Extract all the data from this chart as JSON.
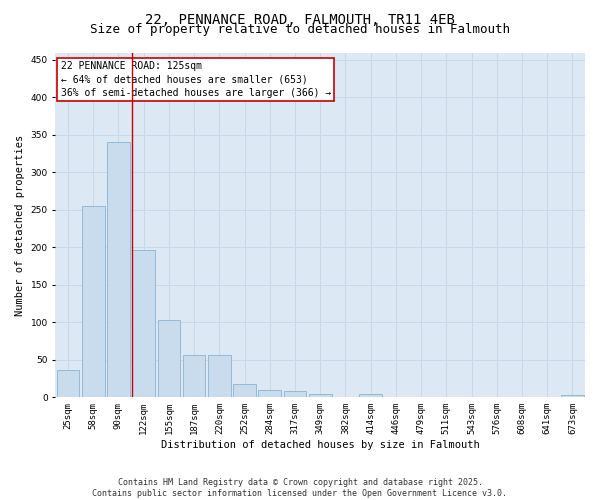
{
  "title_line1": "22, PENNANCE ROAD, FALMOUTH, TR11 4EB",
  "title_line2": "Size of property relative to detached houses in Falmouth",
  "xlabel": "Distribution of detached houses by size in Falmouth",
  "ylabel": "Number of detached properties",
  "categories": [
    "25sqm",
    "58sqm",
    "90sqm",
    "122sqm",
    "155sqm",
    "187sqm",
    "220sqm",
    "252sqm",
    "284sqm",
    "317sqm",
    "349sqm",
    "382sqm",
    "414sqm",
    "446sqm",
    "479sqm",
    "511sqm",
    "543sqm",
    "576sqm",
    "608sqm",
    "641sqm",
    "673sqm"
  ],
  "values": [
    36,
    255,
    340,
    197,
    103,
    57,
    57,
    18,
    10,
    8,
    5,
    0,
    4,
    0,
    0,
    0,
    0,
    0,
    0,
    0,
    3
  ],
  "bar_color": "#c8dced",
  "bar_edge_color": "#8ab4d4",
  "redline_index": 3,
  "annotation_text": "22 PENNANCE ROAD: 125sqm\n← 64% of detached houses are smaller (653)\n36% of semi-detached houses are larger (366) →",
  "annotation_box_color": "#ffffff",
  "annotation_box_edgecolor": "#cc0000",
  "ylim": [
    0,
    460
  ],
  "yticks": [
    0,
    50,
    100,
    150,
    200,
    250,
    300,
    350,
    400,
    450
  ],
  "grid_color": "#c8d8e8",
  "background_color": "#dce8f4",
  "footer_line1": "Contains HM Land Registry data © Crown copyright and database right 2025.",
  "footer_line2": "Contains public sector information licensed under the Open Government Licence v3.0.",
  "title_fontsize": 10,
  "subtitle_fontsize": 9,
  "axis_label_fontsize": 7.5,
  "tick_fontsize": 6.5,
  "annotation_fontsize": 7,
  "footer_fontsize": 6
}
